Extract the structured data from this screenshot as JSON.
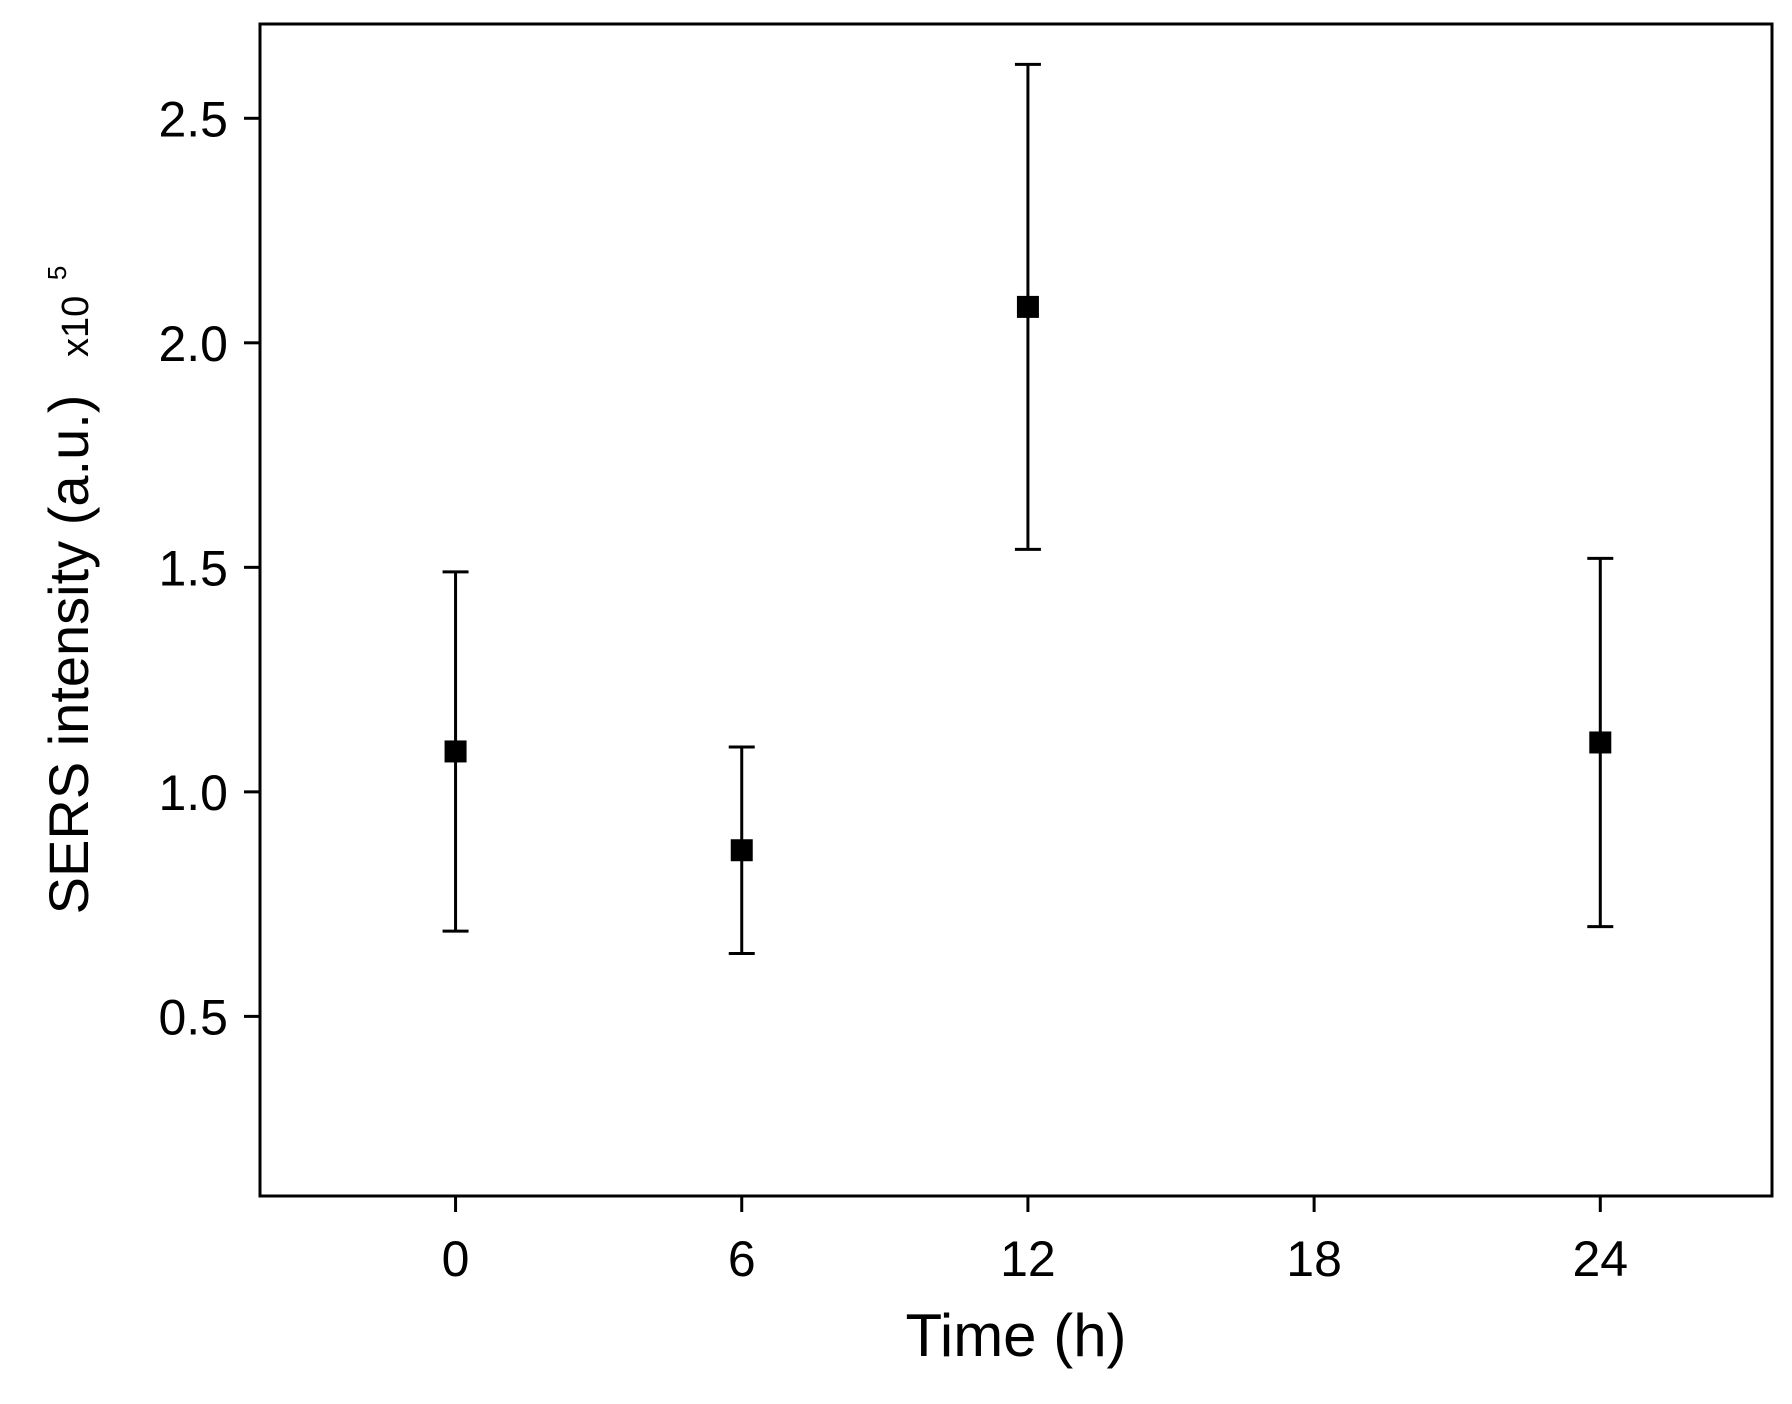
{
  "chart_data": {
    "type": "scatter",
    "xlabel": "Time (h)",
    "ylabel": "SERS intensity (a.u.)",
    "ylabel_multiplier": "x10",
    "ylabel_exponent": "5",
    "xlim": [
      -4.1,
      27.6
    ],
    "ylim": [
      0.1,
      2.71
    ],
    "xticks": [
      0,
      6,
      12,
      18,
      24
    ],
    "yticks": [
      0.5,
      1.0,
      1.5,
      2.0,
      2.5
    ],
    "ytick_labels": [
      "0.5",
      "1.0",
      "1.5",
      "2.0",
      "2.5"
    ],
    "grid": false,
    "series": [
      {
        "marker": "square",
        "color": "#000000",
        "points": [
          {
            "x": 0,
            "y": 1.09,
            "err_low": 0.69,
            "err_high": 1.49
          },
          {
            "x": 6,
            "y": 0.87,
            "err_low": 0.64,
            "err_high": 1.1
          },
          {
            "x": 12,
            "y": 2.08,
            "err_low": 1.54,
            "err_high": 2.62
          },
          {
            "x": 24,
            "y": 1.11,
            "err_low": 0.7,
            "err_high": 1.52
          }
        ]
      }
    ]
  }
}
